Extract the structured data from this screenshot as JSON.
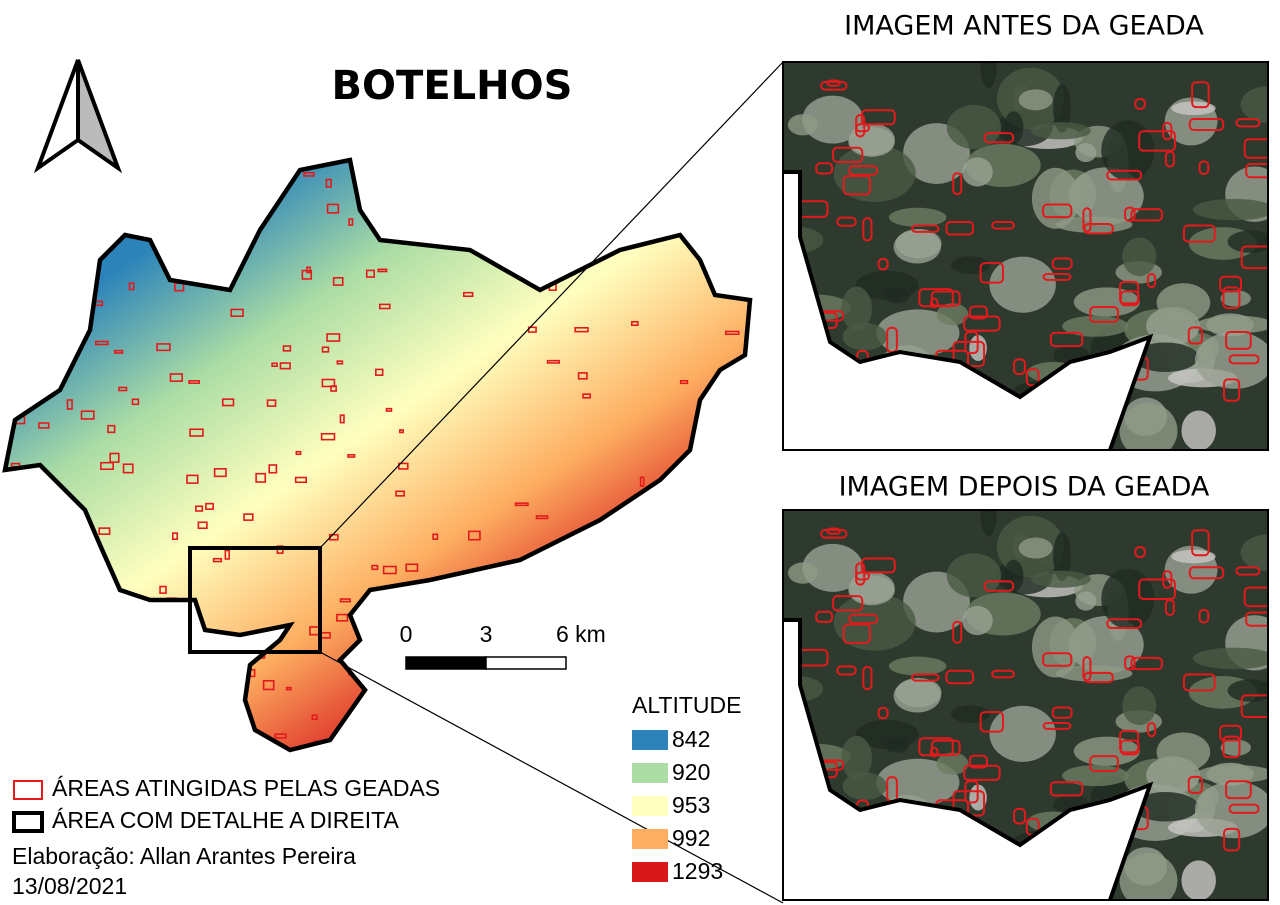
{
  "title": "BOTELHOS",
  "panels": [
    {
      "title": "IMAGEM ANTES DA GEADA"
    },
    {
      "title": "IMAGEM DEPOIS DA GEADA"
    }
  ],
  "scale_bar": {
    "labels": [
      "0",
      "3",
      "6 km"
    ]
  },
  "legend": {
    "title": "ALTITUDE",
    "items": [
      {
        "value": 842,
        "color": "#2b83ba"
      },
      {
        "value": 920,
        "color": "#abdda4"
      },
      {
        "value": 953,
        "color": "#ffffbf"
      },
      {
        "value": 992,
        "color": "#fdae61"
      },
      {
        "value": 1293,
        "color": "#d7191c"
      }
    ]
  },
  "key": [
    {
      "label": "ÁREAS ATINGIDAS PELAS GEADAS"
    },
    {
      "label": "ÁREA COM DETALHE A DIREITA"
    }
  ],
  "credits": {
    "author": "Elaboração: Allan Arantes Pereira",
    "date": "13/08/2021"
  }
}
